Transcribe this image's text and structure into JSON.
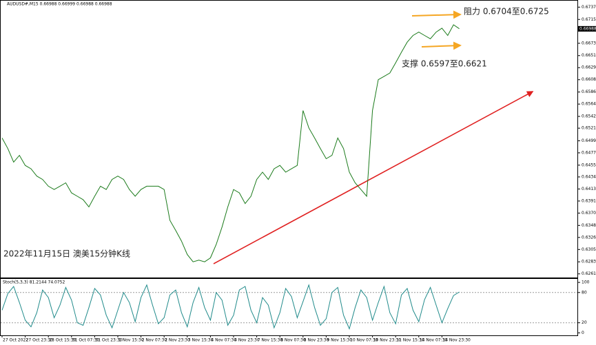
{
  "chart_data": [
    {
      "type": "line",
      "title": "AUDUSD#,M15  0.66988 0.66999 0.66988 0.66988",
      "annotations": [
        "阻力 0.6704至0.6725",
        "支撑 0.6597至0.6621",
        "2022年11月15日 澳美15分钟K线"
      ],
      "last_price": 0.66988,
      "color": "#1a7a1a",
      "categories": [
        "27 Oct 2022",
        null,
        null,
        null,
        "27 Oct 23:30",
        null,
        null,
        null,
        "28 Oct 15:30",
        null,
        null,
        null,
        "31 Oct 07:30",
        null,
        null,
        null,
        "31 Oct 23:30",
        null,
        null,
        null,
        "1 Nov 15:30",
        null,
        null,
        null,
        "2 Nov 07:30",
        null,
        null,
        null,
        "2 Nov 23:30",
        null,
        null,
        null,
        "3 Nov 15:30",
        null,
        null,
        null,
        "4 Nov 07:30",
        null,
        null,
        null,
        "4 Nov 23:30",
        null,
        null,
        null,
        "7 Nov 15:30",
        null,
        null,
        null,
        "8 Nov 07:30",
        null,
        null,
        null,
        "8 Nov 23:30",
        null,
        null,
        null,
        "9 Nov 15:30",
        null,
        null,
        null,
        "10 Nov 07:30",
        null,
        null,
        null,
        "10 Nov 23:30",
        null,
        null,
        null,
        "11 Nov 15:30",
        null,
        null,
        null,
        "14 Nov 07:30",
        null,
        null,
        null,
        "14 Nov 23:30",
        null,
        null,
        null
      ],
      "values": [
        0.6504,
        0.6485,
        0.6461,
        0.6473,
        0.6455,
        0.6449,
        0.6436,
        0.643,
        0.6418,
        0.6412,
        0.6418,
        0.6424,
        0.6406,
        0.64,
        0.6394,
        0.6381,
        0.64,
        0.6418,
        0.6412,
        0.643,
        0.6436,
        0.643,
        0.6412,
        0.64,
        0.6412,
        0.6418,
        0.6418,
        0.6418,
        0.6412,
        0.6357,
        0.6339,
        0.632,
        0.6296,
        0.6283,
        0.6286,
        0.6283,
        0.629,
        0.6314,
        0.6345,
        0.6381,
        0.6412,
        0.6406,
        0.6387,
        0.64,
        0.643,
        0.6443,
        0.643,
        0.6449,
        0.6455,
        0.6443,
        0.6449,
        0.6455,
        0.6553,
        0.6522,
        0.6504,
        0.6485,
        0.6467,
        0.6473,
        0.6504,
        0.6485,
        0.6443,
        0.6424,
        0.6412,
        0.64,
        0.6553,
        0.6608,
        0.6614,
        0.662,
        0.6638,
        0.6657,
        0.6675,
        0.6687,
        0.6693,
        0.6687,
        0.6681,
        0.6693,
        0.67,
        0.6687,
        0.6706,
        0.6699
      ],
      "ylim": [
        0.6255,
        0.6749
      ],
      "yticks": [
        0.67375,
        0.67155,
        {
          "value": 0.6673,
          "label": "0.66730"
        },
        {
          "value": 0.6651,
          "label": "0.66510"
        },
        0.66295,
        {
          "value": 0.6608,
          "label": "0.66080"
        },
        {
          "value": 0.6586,
          "label": "0.65860"
        },
        0.65645,
        0.65425,
        0.65215,
        {
          "value": 0.6499,
          "label": "0.64990"
        },
        0.64775,
        0.64555,
        0.64345,
        {
          "value": 0.6413,
          "label": "0.64130"
        },
        0.63915,
        {
          "value": 0.637,
          "label": "0.63700"
        },
        {
          "value": 0.6348,
          "label": "0.63480"
        },
        0.63265,
        {
          "value": 0.6305,
          "label": "0.63050"
        },
        {
          "value": 0.6283,
          "label": "0.62830"
        },
        0.62615
      ]
    },
    {
      "type": "line",
      "title": "Stoch(5,3,3) 81.2144 74.0752",
      "color": "#1f8a8a",
      "values": [
        45,
        78,
        92,
        60,
        25,
        12,
        40,
        85,
        70,
        30,
        55,
        90,
        65,
        20,
        15,
        50,
        88,
        75,
        35,
        10,
        45,
        80,
        60,
        22,
        70,
        95,
        55,
        18,
        30,
        75,
        85,
        40,
        12,
        60,
        90,
        50,
        25,
        80,
        65,
        15,
        35,
        85,
        92,
        45,
        20,
        70,
        55,
        10,
        40,
        88,
        72,
        30,
        62,
        95,
        50,
        15,
        28,
        80,
        90,
        35,
        8,
        50,
        85,
        70,
        25,
        60,
        92,
        40,
        18,
        75,
        88,
        45,
        22,
        66,
        90,
        55,
        20,
        48,
        74,
        81
      ],
      "ylim": [
        -5,
        107
      ],
      "yticks": [
        100,
        80,
        20,
        0
      ]
    }
  ]
}
